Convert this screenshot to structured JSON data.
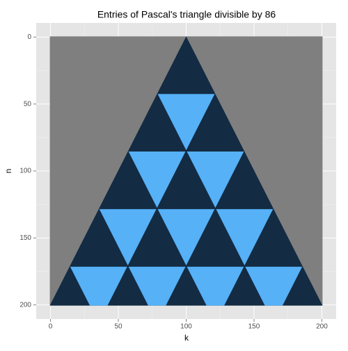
{
  "chart_data": {
    "type": "raster",
    "title": "Entries of Pascal's triangle divisible by 86",
    "xlabel": "k",
    "ylabel": "n",
    "xlim": [
      -10.55,
      210.55
    ],
    "ylim": [
      -10.55,
      210.55
    ],
    "y_reversed": true,
    "xticks": [
      0,
      50,
      100,
      150,
      200
    ],
    "yticks": [
      0,
      50,
      100,
      150,
      200
    ],
    "xminor": [
      25,
      75,
      125,
      175
    ],
    "yminor": [
      25,
      75,
      125,
      175
    ],
    "grid": true,
    "nrange": [
      0,
      200
    ],
    "na_color": "#7f7f7f",
    "false_color": "#132b43",
    "true_color": "#56b1f7",
    "divisible_triangles": [
      {
        "n0": 43,
        "k0": 1,
        "k1": 42
      },
      {
        "n0": 86,
        "k0": 1,
        "k1": 42
      },
      {
        "n0": 86,
        "k0": 44,
        "k1": 85
      },
      {
        "n0": 129,
        "k0": 1,
        "k1": 42
      },
      {
        "n0": 129,
        "k0": 44,
        "k1": 85
      },
      {
        "n0": 129,
        "k0": 87,
        "k1": 128
      },
      {
        "n0": 172,
        "k0": 1,
        "k1": 42
      },
      {
        "n0": 172,
        "k0": 44,
        "k1": 85
      },
      {
        "n0": 172,
        "k0": 87,
        "k1": 128
      },
      {
        "n0": 172,
        "k0": 130,
        "k1": 171
      }
    ]
  }
}
